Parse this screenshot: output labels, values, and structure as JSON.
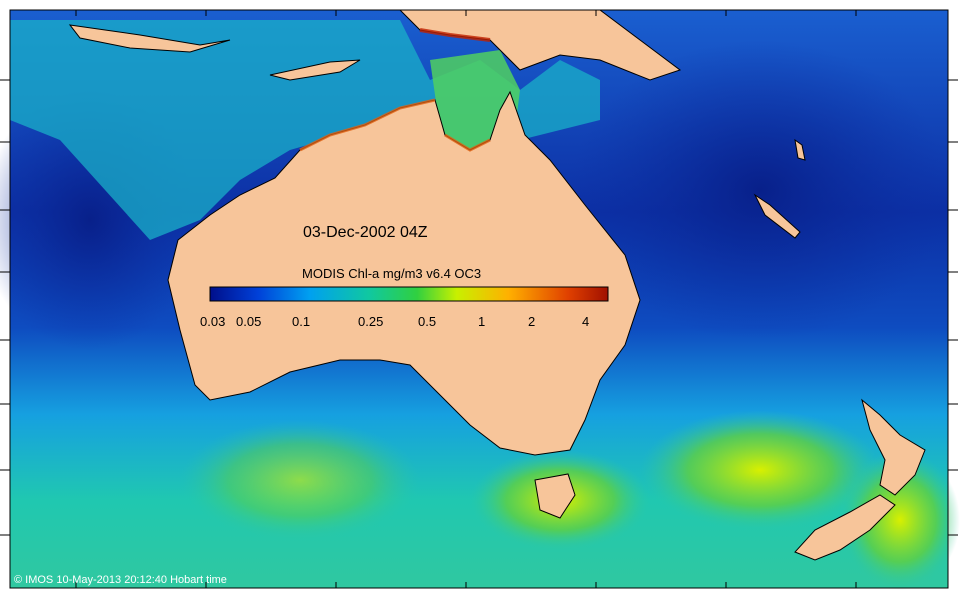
{
  "map": {
    "date_label": "03-Dec-2002 04Z",
    "colorbar_title": "MODIS Chl-a mg/m3 v6.4 OC3",
    "colorbar_ticks": [
      "0.03",
      "0.05",
      "0.1",
      "0.25",
      "0.5",
      "1",
      "2",
      "4"
    ],
    "colorbar_stops": [
      "#000f8a",
      "#0040d8",
      "#00a0f0",
      "#10c8a0",
      "#30d040",
      "#c8f000",
      "#ffb000",
      "#e04000",
      "#a01000"
    ],
    "credit": "© IMOS 10-May-2013 20:12:40 Hobart time",
    "colors": {
      "land": "#f7c59a",
      "deep_ocean": "#0a2ea0",
      "mid_ocean": "#1a7ae0",
      "southern_ocean": "#20c8a8",
      "bloom": "#c8f000"
    }
  }
}
